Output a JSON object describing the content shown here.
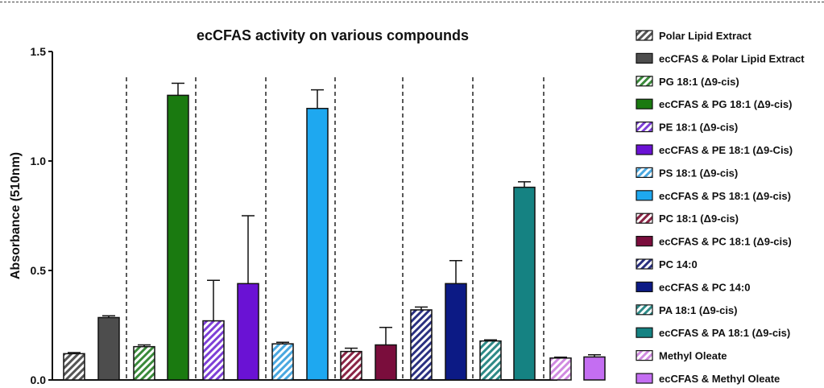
{
  "chart_data": {
    "type": "bar",
    "title": "ecCFAS activity on various compounds",
    "xlabel": "",
    "ylabel": "Absorbance (510nm)",
    "ylim": [
      0,
      1.5
    ],
    "yticks": [
      "0.0",
      "0.5",
      "1.0",
      "1.5"
    ],
    "ytick_values": [
      0,
      0.5,
      1.0,
      1.5
    ],
    "grid": false,
    "legend_position": "right",
    "series": [
      {
        "name": "Polar Lipid Extract",
        "value": 0.12,
        "error": 0.005,
        "color": "#555555",
        "hatched": true
      },
      {
        "name": "ecCFAS & Polar Lipid Extract",
        "value": 0.285,
        "error": 0.008,
        "color": "#4d4d4d",
        "hatched": false
      },
      {
        "name": "PG 18:1 (Δ9-cis)",
        "value": 0.152,
        "error": 0.008,
        "color": "#3a8a3a",
        "hatched": true
      },
      {
        "name": "ecCFAS & PG 18:1 (Δ9-cis)",
        "value": 1.3,
        "error": 0.055,
        "color": "#1a7a10",
        "hatched": false
      },
      {
        "name": "PE 18:1 (Δ9-cis)",
        "value": 0.27,
        "error": 0.185,
        "color": "#7d3fd6",
        "hatched": true
      },
      {
        "name": "ecCFAS & PE 18:1 (Δ9-Cis)",
        "value": 0.44,
        "error": 0.31,
        "color": "#6a12d4",
        "hatched": false
      },
      {
        "name": "PS 18:1 (Δ9-cis)",
        "value": 0.165,
        "error": 0.007,
        "color": "#4aa8e0",
        "hatched": true
      },
      {
        "name": "ecCFAS & PS 18:1 (Δ9-cis)",
        "value": 1.24,
        "error": 0.085,
        "color": "#1ea8f0",
        "hatched": false
      },
      {
        "name": "PC 18:1 (Δ9-cis)",
        "value": 0.13,
        "error": 0.015,
        "color": "#8a2445",
        "hatched": true
      },
      {
        "name": "ecCFAS & PC 18:1 (Δ9-cis)",
        "value": 0.16,
        "error": 0.08,
        "color": "#7a0d3c",
        "hatched": false
      },
      {
        "name": "PC 14:0",
        "value": 0.32,
        "error": 0.013,
        "color": "#2a3080",
        "hatched": true
      },
      {
        "name": "ecCFAS & PC 14:0",
        "value": 0.44,
        "error": 0.105,
        "color": "#0c1a85",
        "hatched": false
      },
      {
        "name": "PA 18:1 (Δ9-cis)",
        "value": 0.178,
        "error": 0.005,
        "color": "#2e8a87",
        "hatched": true
      },
      {
        "name": "ecCFAS & PA 18:1 (Δ9-cis)",
        "value": 0.88,
        "error": 0.025,
        "color": "#158282",
        "hatched": false
      },
      {
        "name": "Methyl Oleate",
        "value": 0.1,
        "error": 0.004,
        "color": "#d08ae0",
        "hatched": true
      },
      {
        "name": "ecCFAS & Methyl Oleate",
        "value": 0.105,
        "error": 0.01,
        "color": "#c46ef2",
        "hatched": false
      }
    ],
    "group_separators": true
  }
}
